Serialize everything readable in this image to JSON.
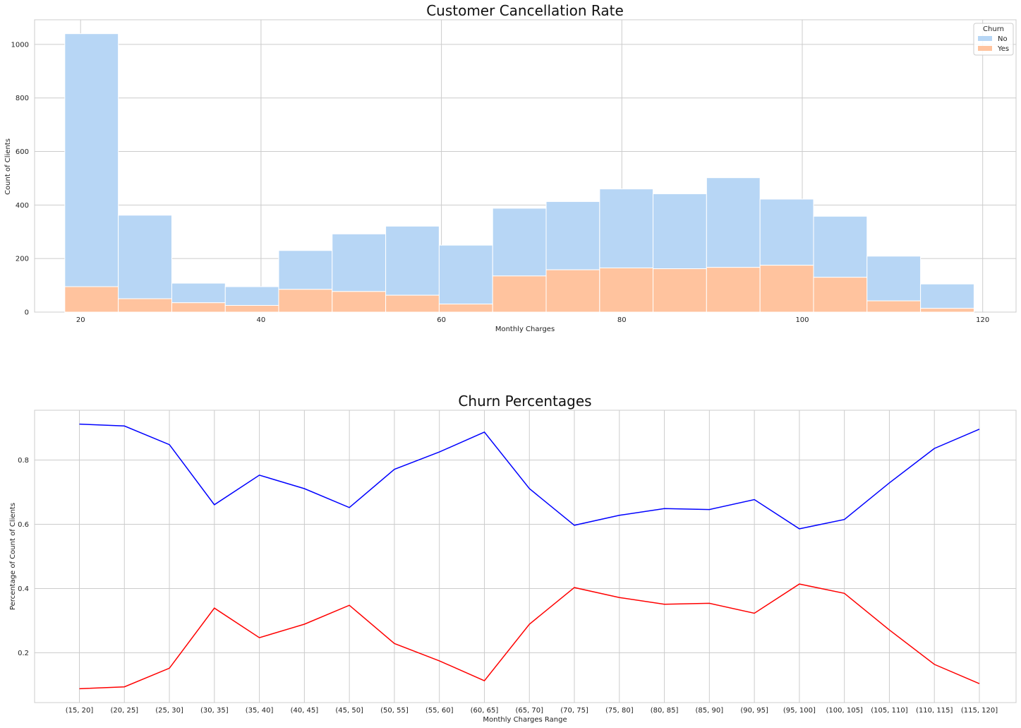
{
  "chart_data": [
    {
      "type": "bar",
      "stacked": true,
      "title": "Customer Cancellation Rate",
      "xlabel": "Monthly Charges",
      "ylabel": "Count of Clients",
      "xlim": [
        14.9,
        123.7
      ],
      "ylim": [
        0,
        1092
      ],
      "xticks": [
        20,
        40,
        60,
        80,
        100,
        120
      ],
      "yticks": [
        0,
        200,
        400,
        600,
        800,
        1000
      ],
      "bin_edges": [
        18.25,
        24.18,
        30.11,
        36.04,
        41.96,
        47.89,
        53.82,
        59.75,
        65.68,
        71.61,
        77.54,
        83.46,
        89.39,
        95.32,
        101.25,
        107.18,
        113.11,
        119.04
      ],
      "series": [
        {
          "name": "No",
          "color": "#b7d6f5",
          "values": [
            945,
            312,
            73,
            70,
            145,
            215,
            258,
            220,
            253,
            255,
            295,
            280,
            335,
            247,
            228,
            167,
            91
          ]
        },
        {
          "name": "Yes",
          "color": "#ffc39e",
          "values": [
            95,
            50,
            35,
            25,
            85,
            77,
            63,
            30,
            135,
            158,
            165,
            162,
            167,
            175,
            130,
            42,
            14
          ]
        }
      ],
      "totals": [
        1040,
        362,
        108,
        95,
        230,
        292,
        321,
        250,
        388,
        413,
        460,
        442,
        502,
        422,
        358,
        209,
        105
      ],
      "legend": {
        "title": "Churn",
        "placement": "top-right"
      },
      "grid": true
    },
    {
      "type": "line",
      "title": "Churn Percentages",
      "xlabel": "Monthly Charges Range",
      "ylabel": "Percentage of Count of Clients",
      "categories": [
        "(15, 20]",
        "(20, 25]",
        "(25, 30]",
        "(30, 35]",
        "(35, 40]",
        "(40, 45]",
        "(45, 50]",
        "(50, 55]",
        "(55, 60]",
        "(60, 65]",
        "(65, 70]",
        "(70, 75]",
        "(75, 80]",
        "(80, 85]",
        "(85, 90]",
        "(90, 95]",
        "(95, 100]",
        "(100, 105]",
        "(105, 110]",
        "(110, 115]",
        "(115, 120]"
      ],
      "ylim": [
        0.045,
        0.955
      ],
      "yticks": [
        0.2,
        0.4,
        0.6,
        0.8
      ],
      "series": [
        {
          "color": "#0000ff",
          "values": [
            0.912,
            0.906,
            0.848,
            0.661,
            0.753,
            0.711,
            0.652,
            0.771,
            0.825,
            0.887,
            0.711,
            0.597,
            0.628,
            0.649,
            0.646,
            0.677,
            0.586,
            0.615,
            0.729,
            0.836,
            0.896
          ]
        },
        {
          "color": "#ff0000",
          "values": [
            0.088,
            0.094,
            0.152,
            0.339,
            0.247,
            0.289,
            0.348,
            0.229,
            0.175,
            0.113,
            0.289,
            0.403,
            0.372,
            0.351,
            0.354,
            0.323,
            0.414,
            0.385,
            0.271,
            0.164,
            0.104
          ]
        }
      ],
      "grid": true
    }
  ]
}
